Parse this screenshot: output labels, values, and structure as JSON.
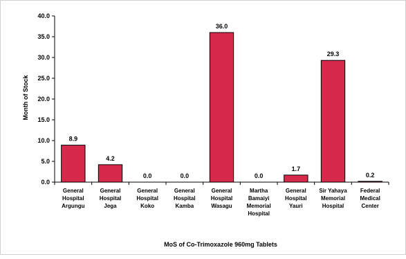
{
  "chart_data": {
    "type": "bar",
    "title": "",
    "xlabel": "MoS of Co-Trimoxazole 960mg Tablets",
    "ylabel": "Month of Stock",
    "ylim": [
      0,
      40
    ],
    "yticks": [
      "0.0",
      "5.0",
      "10.0",
      "15.0",
      "20.0",
      "25.0",
      "30.0",
      "35.0",
      "40.0"
    ],
    "grid": false,
    "legend": "none",
    "bar_color": "#d6294b",
    "bar_edge_color": "#000000",
    "categories": [
      [
        "General",
        "Hospital",
        "Argungu"
      ],
      [
        "General",
        "Hospital",
        "Jega"
      ],
      [
        "General",
        "Hospital",
        "Koko"
      ],
      [
        "General",
        "Hospital",
        "Kamba"
      ],
      [
        "General",
        "Hospital",
        "Wasagu"
      ],
      [
        "Martha",
        "Bamaiyi",
        "Memorial",
        "Hospital"
      ],
      [
        "General",
        "Hospital",
        "Yauri"
      ],
      [
        "Sir Yahaya",
        "Memorial",
        "Hospital"
      ],
      [
        "Federal",
        "Medical",
        "Center"
      ]
    ],
    "values": [
      8.9,
      4.2,
      0.0,
      0.0,
      36.0,
      0.0,
      1.7,
      29.3,
      0.2
    ],
    "value_labels": [
      "8.9",
      "4.2",
      "0.0",
      "0.0",
      "36.0",
      "0.0",
      "1.7",
      "29.3",
      "0.2"
    ]
  }
}
